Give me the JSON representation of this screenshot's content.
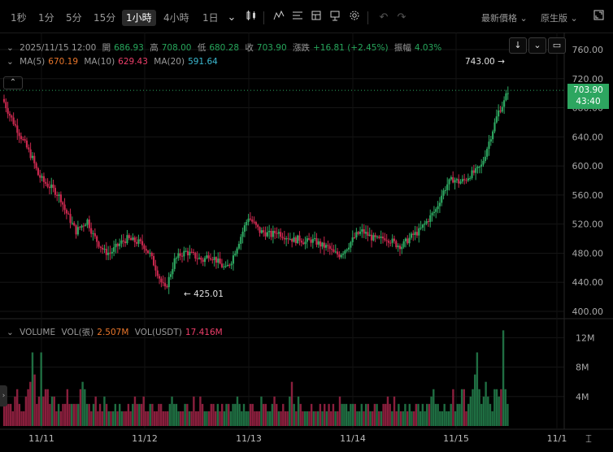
{
  "toolbar": {
    "timeframes": [
      "1秒",
      "1分",
      "5分",
      "15分",
      "1小時",
      "4小時",
      "1日"
    ],
    "active_timeframe": "1小時",
    "price_type": "最新價格",
    "version": "原生版",
    "chevron": "⌄"
  },
  "ohlc": {
    "date": "2025/11/15 12:00",
    "open_label": "開",
    "open": "686.93",
    "high_label": "高",
    "high": "708.00",
    "low_label": "低",
    "low": "680.28",
    "close_label": "收",
    "close": "703.90",
    "change_label": "漲跌",
    "change": "+16.81 (+2.45%)",
    "amplitude_label": "振幅",
    "amplitude": "4.03%"
  },
  "ma": {
    "ma5_label": "MA(5)",
    "ma5": "670.19",
    "ma10_label": "MA(10)",
    "ma10": "629.43",
    "ma20_label": "MA(20)",
    "ma20": "591.64"
  },
  "volume": {
    "title": "VOLUME",
    "vol_label": "VOL(張)",
    "vol": "2.507M",
    "vol_usdt_label": "VOL(USDT)",
    "vol_usdt": "17.416M"
  },
  "current_price": {
    "price": "703.90",
    "countdown": "43:40"
  },
  "colors": {
    "up": "#2da660",
    "down": "#c8284e",
    "ma5": "#e9762b",
    "ma10": "#ee3e6a",
    "ma20": "#3bb8d0"
  },
  "chart_data": {
    "type": "candlestick",
    "price_axis": {
      "ticks": [
        "760.00",
        "720.00",
        "680.00",
        "640.00",
        "600.00",
        "560.00",
        "520.00",
        "480.00",
        "440.00",
        "400.00"
      ],
      "range": [
        400,
        760
      ]
    },
    "volume_axis": {
      "ticks": [
        "12M",
        "8M",
        "4M"
      ],
      "range": [
        0,
        14
      ]
    },
    "x_ticks": [
      "11/11",
      "11/12",
      "11/13",
      "11/14",
      "11/15",
      "11/1"
    ],
    "max_label": "743.00",
    "min_label": "425.01",
    "anchors": [
      [
        0,
        688
      ],
      [
        3,
        670
      ],
      [
        6,
        655
      ],
      [
        9,
        640
      ],
      [
        12,
        625
      ],
      [
        15,
        610
      ],
      [
        18,
        588
      ],
      [
        21,
        578
      ],
      [
        24,
        572
      ],
      [
        27,
        565
      ],
      [
        30,
        555
      ],
      [
        32,
        540
      ],
      [
        35,
        525
      ],
      [
        38,
        510
      ],
      [
        41,
        518
      ],
      [
        44,
        525
      ],
      [
        47,
        505
      ],
      [
        50,
        493
      ],
      [
        53,
        482
      ],
      [
        56,
        480
      ],
      [
        59,
        488
      ],
      [
        62,
        495
      ],
      [
        65,
        500
      ],
      [
        68,
        497
      ],
      [
        71,
        495
      ],
      [
        74,
        490
      ],
      [
        77,
        478
      ],
      [
        80,
        460
      ],
      [
        83,
        440
      ],
      [
        85,
        430
      ],
      [
        87,
        445
      ],
      [
        90,
        470
      ],
      [
        93,
        478
      ],
      [
        96,
        482
      ],
      [
        99,
        478
      ],
      [
        102,
        474
      ],
      [
        105,
        470
      ],
      [
        108,
        478
      ],
      [
        111,
        473
      ],
      [
        114,
        465
      ],
      [
        117,
        458
      ],
      [
        120,
        470
      ],
      [
        123,
        490
      ],
      [
        126,
        510
      ],
      [
        129,
        530
      ],
      [
        132,
        520
      ],
      [
        135,
        510
      ],
      [
        138,
        508
      ],
      [
        141,
        505
      ],
      [
        144,
        510
      ],
      [
        147,
        505
      ],
      [
        150,
        502
      ],
      [
        153,
        498
      ],
      [
        156,
        500
      ],
      [
        159,
        495
      ],
      [
        162,
        498
      ],
      [
        165,
        495
      ],
      [
        168,
        490
      ],
      [
        171,
        488
      ],
      [
        174,
        480
      ],
      [
        177,
        478
      ],
      [
        180,
        485
      ],
      [
        183,
        495
      ],
      [
        186,
        505
      ],
      [
        189,
        510
      ],
      [
        192,
        505
      ],
      [
        195,
        500
      ],
      [
        198,
        498
      ],
      [
        201,
        502
      ],
      [
        204,
        498
      ],
      [
        207,
        492
      ],
      [
        210,
        490
      ],
      [
        213,
        498
      ],
      [
        216,
        505
      ],
      [
        219,
        510
      ],
      [
        222,
        520
      ],
      [
        225,
        530
      ],
      [
        228,
        540
      ],
      [
        231,
        560
      ],
      [
        234,
        575
      ],
      [
        237,
        582
      ],
      [
        240,
        578
      ],
      [
        243,
        580
      ],
      [
        246,
        588
      ],
      [
        249,
        592
      ],
      [
        252,
        600
      ],
      [
        255,
        625
      ],
      [
        258,
        650
      ],
      [
        261,
        675
      ],
      [
        264,
        688
      ],
      [
        266,
        704
      ]
    ],
    "volume_bars_M": [
      4,
      3,
      3,
      3,
      2,
      4,
      5,
      3,
      2,
      2,
      4,
      5,
      6,
      10,
      7,
      3,
      4,
      10,
      4,
      5,
      5,
      3,
      4,
      4,
      2,
      3,
      2,
      3,
      3,
      5,
      3,
      3,
      3,
      3,
      3,
      5,
      6,
      5,
      3,
      3,
      2,
      3,
      4,
      2,
      3,
      2,
      4,
      3,
      2,
      2,
      2,
      3,
      2,
      3,
      2,
      2,
      2,
      3,
      2,
      3,
      4,
      3,
      3,
      3,
      4,
      2,
      2,
      3,
      3,
      2,
      2,
      3,
      3,
      2,
      2,
      2,
      3,
      4,
      3,
      3,
      2,
      2,
      2,
      3,
      3,
      2,
      2,
      4,
      2,
      2,
      4,
      3,
      2,
      2,
      2,
      3,
      3,
      2,
      3,
      2,
      3,
      2,
      3,
      3,
      2,
      3,
      3,
      4,
      3,
      2,
      3,
      2,
      2,
      3,
      3,
      2,
      2,
      2,
      4,
      3,
      3,
      2,
      2,
      3,
      4,
      3,
      2,
      2,
      3,
      2,
      2,
      4,
      6,
      3,
      2,
      4,
      3,
      2,
      2,
      2,
      2,
      3,
      2,
      2,
      2,
      3,
      2,
      3,
      2,
      3,
      2,
      3,
      2,
      2,
      4,
      3,
      3,
      3,
      2,
      3,
      3,
      3,
      2,
      2,
      3,
      2,
      3,
      3,
      2,
      2,
      3,
      3,
      2,
      2,
      3,
      3,
      4,
      3,
      2,
      4,
      2,
      3,
      2,
      2,
      3,
      2,
      3,
      2,
      2,
      3,
      3,
      2,
      3,
      2,
      3,
      3,
      4,
      5,
      3,
      3,
      2,
      2,
      3,
      2,
      2,
      3,
      5,
      2,
      3,
      3,
      5,
      5,
      2,
      3,
      4,
      5,
      7,
      10,
      5,
      3,
      4,
      6,
      4,
      3,
      2,
      5,
      5,
      4,
      5,
      13,
      5,
      3
    ]
  }
}
